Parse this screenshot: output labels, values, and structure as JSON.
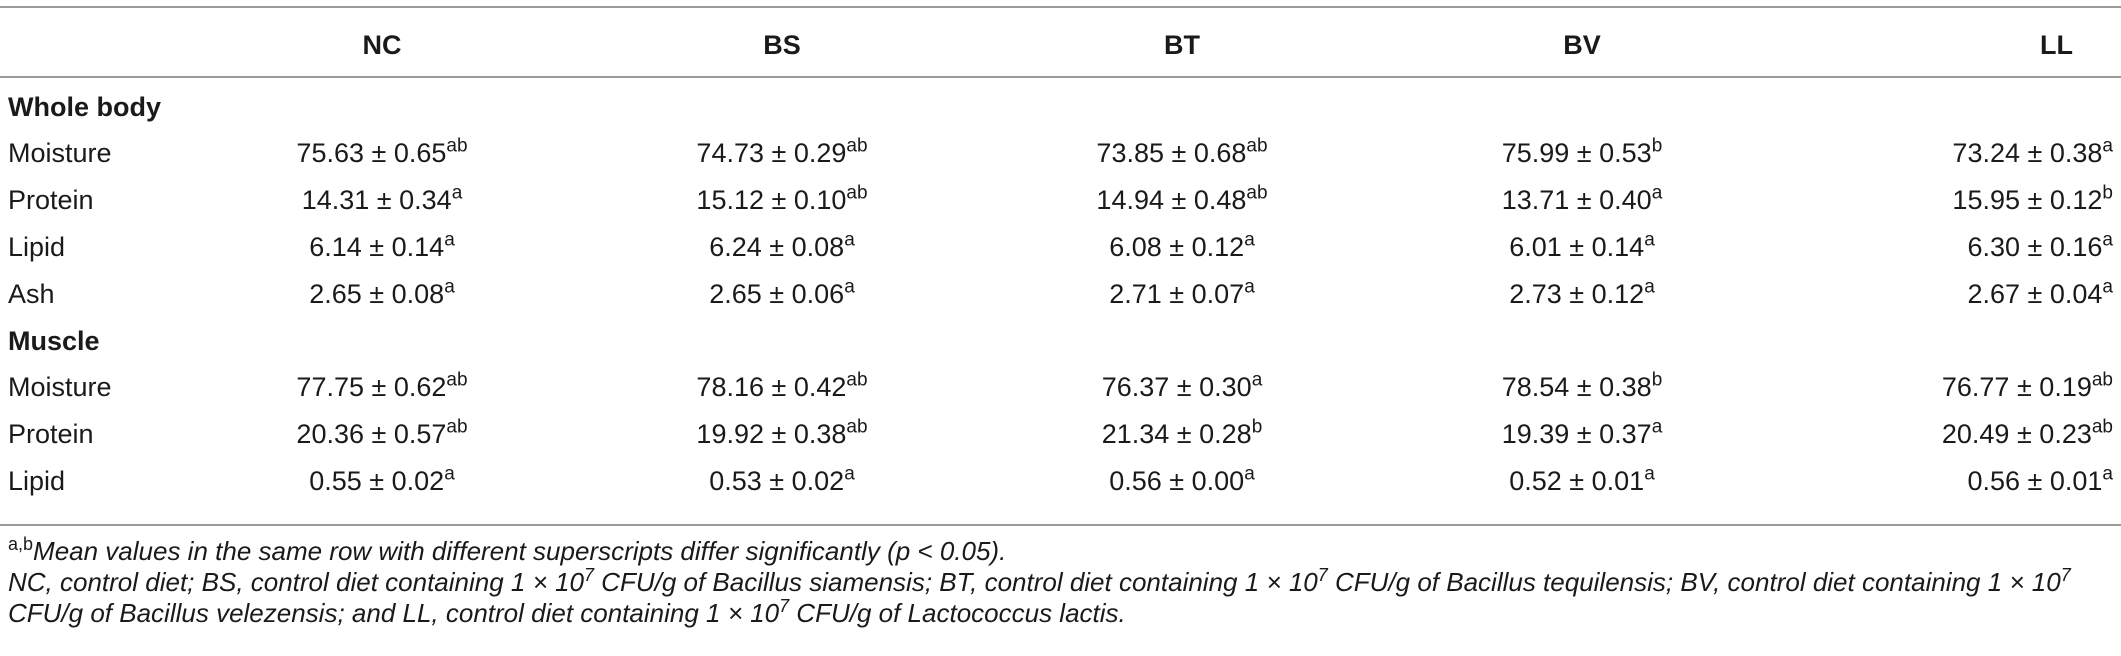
{
  "columns": [
    "NC",
    "BS",
    "BT",
    "BV",
    "LL"
  ],
  "pm": "±",
  "sections": [
    {
      "title": "Whole body",
      "rows": [
        {
          "label": "Moisture",
          "cells": [
            {
              "v": "75.63",
              "se": "0.65",
              "sup": "ab"
            },
            {
              "v": "74.73",
              "se": "0.29",
              "sup": "ab"
            },
            {
              "v": "73.85",
              "se": "0.68",
              "sup": "ab"
            },
            {
              "v": "75.99",
              "se": "0.53",
              "sup": "b"
            },
            {
              "v": "73.24",
              "se": "0.38",
              "sup": "a"
            }
          ]
        },
        {
          "label": "Protein",
          "cells": [
            {
              "v": "14.31",
              "se": "0.34",
              "sup": "a"
            },
            {
              "v": "15.12",
              "se": "0.10",
              "sup": "ab"
            },
            {
              "v": "14.94",
              "se": "0.48",
              "sup": "ab"
            },
            {
              "v": "13.71",
              "se": "0.40",
              "sup": "a"
            },
            {
              "v": "15.95",
              "se": "0.12",
              "sup": "b"
            }
          ]
        },
        {
          "label": "Lipid",
          "cells": [
            {
              "v": "6.14",
              "se": "0.14",
              "sup": "a"
            },
            {
              "v": "6.24",
              "se": "0.08",
              "sup": "a"
            },
            {
              "v": "6.08",
              "se": "0.12",
              "sup": "a"
            },
            {
              "v": "6.01",
              "se": "0.14",
              "sup": "a"
            },
            {
              "v": "6.30",
              "se": "0.16",
              "sup": "a"
            }
          ]
        },
        {
          "label": "Ash",
          "cells": [
            {
              "v": "2.65",
              "se": "0.08",
              "sup": "a"
            },
            {
              "v": "2.65",
              "se": "0.06",
              "sup": "a"
            },
            {
              "v": "2.71",
              "se": "0.07",
              "sup": "a"
            },
            {
              "v": "2.73",
              "se": "0.12",
              "sup": "a"
            },
            {
              "v": "2.67",
              "se": "0.04",
              "sup": "a"
            }
          ]
        }
      ]
    },
    {
      "title": "Muscle",
      "rows": [
        {
          "label": "Moisture",
          "cells": [
            {
              "v": "77.75",
              "se": "0.62",
              "sup": "ab"
            },
            {
              "v": "78.16",
              "se": "0.42",
              "sup": "ab"
            },
            {
              "v": "76.37",
              "se": "0.30",
              "sup": "a"
            },
            {
              "v": "78.54",
              "se": "0.38",
              "sup": "b"
            },
            {
              "v": "76.77",
              "se": "0.19",
              "sup": "ab"
            }
          ]
        },
        {
          "label": "Protein",
          "cells": [
            {
              "v": "20.36",
              "se": "0.57",
              "sup": "ab"
            },
            {
              "v": "19.92",
              "se": "0.38",
              "sup": "ab"
            },
            {
              "v": "21.34",
              "se": "0.28",
              "sup": "b"
            },
            {
              "v": "19.39",
              "se": "0.37",
              "sup": "a"
            },
            {
              "v": "20.49",
              "se": "0.23",
              "sup": "ab"
            }
          ]
        },
        {
          "label": "Lipid",
          "cells": [
            {
              "v": "0.55",
              "se": "0.02",
              "sup": "a"
            },
            {
              "v": "0.53",
              "se": "0.02",
              "sup": "a"
            },
            {
              "v": "0.56",
              "se": "0.00",
              "sup": "a"
            },
            {
              "v": "0.52",
              "se": "0.01",
              "sup": "a"
            },
            {
              "v": "0.56",
              "se": "0.01",
              "sup": "a"
            }
          ]
        }
      ]
    }
  ],
  "footnotes": {
    "sig_sup": "a,b",
    "sig_text": "Mean values in the same row with different superscripts differ significantly (p < 0.05).",
    "abbrev_parts": [
      "NC, control diet; BS, control diet containing 1 × 10",
      "7",
      " CFU/g of Bacillus siamensis; BT, control diet containing 1 × 10",
      "7",
      " CFU/g of Bacillus tequilensis; BV, control diet containing 1 × 10",
      "7",
      " CFU/g of Bacillus velezensis; and LL, control diet containing 1 × 10",
      "7",
      " CFU/g of Lactococcus lactis."
    ]
  }
}
